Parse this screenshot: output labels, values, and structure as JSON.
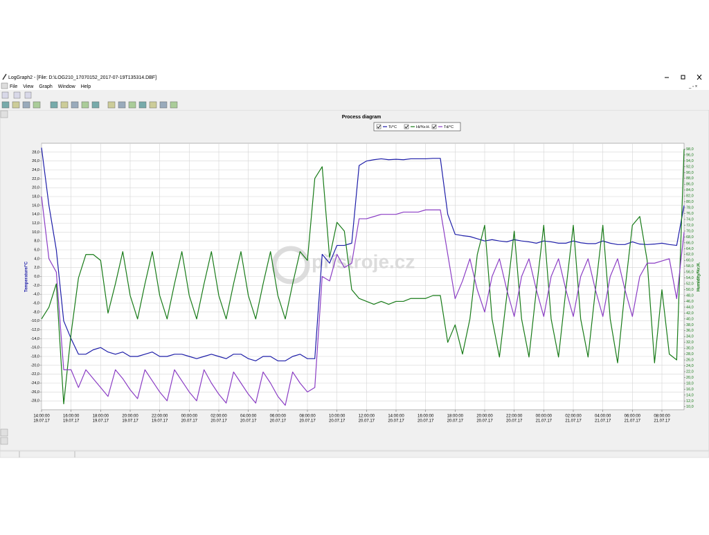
{
  "window": {
    "title": "LogGraph2 - [File: D:\\LOG210_17070152_2017-07-19T135314.DBF]",
    "menu": [
      "File",
      "View",
      "Graph",
      "Window",
      "Help"
    ],
    "watermark": "přístroje.cz"
  },
  "chart_data": {
    "type": "line",
    "title": "Process diagram",
    "y_label": "Temperature/°C",
    "y2_label": "Humidity/%r.H.",
    "grid": true,
    "x": [
      0,
      0.5,
      1,
      1.5,
      2,
      2.5,
      3,
      3.5,
      4,
      4.5,
      5,
      5.5,
      6,
      6.5,
      7,
      7.5,
      8,
      8.5,
      9,
      9.5,
      10,
      10.5,
      11,
      11.5,
      12,
      12.5,
      13,
      13.5,
      14,
      14.5,
      15,
      15.5,
      16,
      16.5,
      17,
      17.5,
      18,
      18.5,
      19,
      19.5,
      20,
      20.5,
      21,
      21.5,
      22,
      22.5,
      23,
      23.5,
      24,
      24.5,
      25,
      25.5,
      26,
      26.5,
      27,
      27.5,
      28,
      28.5,
      29,
      29.5,
      30,
      30.5,
      31,
      31.5,
      32,
      32.5,
      33,
      33.5,
      34,
      34.5,
      35,
      35.5,
      36,
      36.5,
      37,
      37.5,
      38,
      38.5,
      39,
      39.5,
      40,
      40.5,
      41,
      41.5,
      42,
      42.5,
      43,
      43.5
    ],
    "xlim": [
      0,
      43.5
    ],
    "xticks": [
      {
        "value": 0,
        "label": "14:00:00"
      },
      {
        "value": 2,
        "label": "16:00:00"
      },
      {
        "value": 4,
        "label": "18:00:00"
      },
      {
        "value": 6,
        "label": "20:00:00"
      },
      {
        "value": 8,
        "label": "22:00:00"
      },
      {
        "value": 10,
        "label": "00:00:00"
      },
      {
        "value": 12,
        "label": "02:00:00"
      },
      {
        "value": 14,
        "label": "04:00:00"
      },
      {
        "value": 16,
        "label": "06:00:00"
      },
      {
        "value": 18,
        "label": "08:00:00"
      },
      {
        "value": 20,
        "label": "10:00:00"
      },
      {
        "value": 22,
        "label": "12:00:00"
      },
      {
        "value": 24,
        "label": "14:00:00"
      },
      {
        "value": 26,
        "label": "16:00:00"
      },
      {
        "value": 28,
        "label": "18:00:00"
      },
      {
        "value": 30,
        "label": "20:00:00"
      },
      {
        "value": 32,
        "label": "22:00:00"
      },
      {
        "value": 34,
        "label": "00:00:00"
      },
      {
        "value": 36,
        "label": "02:00:00"
      },
      {
        "value": 38,
        "label": "04:00:00"
      },
      {
        "value": 40,
        "label": "06:00:00"
      },
      {
        "value": 42,
        "label": "08:00:00"
      }
    ],
    "xtick_dates": [
      "19.07.17",
      "19.07.17",
      "19.07.17",
      "19.07.17",
      "19.07.17",
      "20.07.17",
      "20.07.17",
      "20.07.17",
      "20.07.17",
      "20.07.17",
      "20.07.17",
      "20.07.17",
      "20.07.17",
      "20.07.17",
      "20.07.17",
      "20.07.17",
      "20.07.17",
      "21.07.17",
      "21.07.17",
      "21.07.17",
      "21.07.17",
      "21.07.17"
    ],
    "ylim": [
      -30,
      30
    ],
    "yticks": [
      {
        "value": -28,
        "label": "-28,0"
      },
      {
        "value": -26,
        "label": "-26,0"
      },
      {
        "value": -24,
        "label": "-24,0"
      },
      {
        "value": -22,
        "label": "-22,0"
      },
      {
        "value": -20,
        "label": "-20,0"
      },
      {
        "value": -18,
        "label": "-18,0"
      },
      {
        "value": -16,
        "label": "-16,0"
      },
      {
        "value": -14,
        "label": "-14,0"
      },
      {
        "value": -12,
        "label": "-12,0"
      },
      {
        "value": -10,
        "label": "-10,0"
      },
      {
        "value": -8,
        "label": "-8,0"
      },
      {
        "value": -6,
        "label": "-6,0"
      },
      {
        "value": -4,
        "label": "-4,0"
      },
      {
        "value": -2,
        "label": "-2,0"
      },
      {
        "value": 0,
        "label": "0,0"
      },
      {
        "value": 2,
        "label": "2,0"
      },
      {
        "value": 4,
        "label": "4,0"
      },
      {
        "value": 6,
        "label": "6,0"
      },
      {
        "value": 8,
        "label": "8,0"
      },
      {
        "value": 10,
        "label": "10,0"
      },
      {
        "value": 12,
        "label": "12,0"
      },
      {
        "value": 14,
        "label": "14,0"
      },
      {
        "value": 16,
        "label": "16,0"
      },
      {
        "value": 18,
        "label": "18,0"
      },
      {
        "value": 20,
        "label": "20,0"
      },
      {
        "value": 22,
        "label": "22,0"
      },
      {
        "value": 24,
        "label": "24,0"
      },
      {
        "value": 26,
        "label": "26,0"
      },
      {
        "value": 28,
        "label": "28,0"
      }
    ],
    "y2lim": [
      9,
      100
    ],
    "y2ticks": [
      {
        "value": 10,
        "label": "10,0"
      },
      {
        "value": 12,
        "label": "12,0"
      },
      {
        "value": 14,
        "label": "14,0"
      },
      {
        "value": 16,
        "label": "16,0"
      },
      {
        "value": 18,
        "label": "18,0"
      },
      {
        "value": 20,
        "label": "20,0"
      },
      {
        "value": 22,
        "label": "22,0"
      },
      {
        "value": 24,
        "label": "24,0"
      },
      {
        "value": 26,
        "label": "26,0"
      },
      {
        "value": 28,
        "label": "28,0"
      },
      {
        "value": 30,
        "label": "30,0"
      },
      {
        "value": 32,
        "label": "32,0"
      },
      {
        "value": 34,
        "label": "34,0"
      },
      {
        "value": 36,
        "label": "36,0"
      },
      {
        "value": 38,
        "label": "38,0"
      },
      {
        "value": 40,
        "label": "40,0"
      },
      {
        "value": 42,
        "label": "42,0"
      },
      {
        "value": 44,
        "label": "44,0"
      },
      {
        "value": 46,
        "label": "46,0"
      },
      {
        "value": 48,
        "label": "48,0"
      },
      {
        "value": 50,
        "label": "50,0"
      },
      {
        "value": 52,
        "label": "52,0"
      },
      {
        "value": 54,
        "label": "54,0"
      },
      {
        "value": 56,
        "label": "56,0"
      },
      {
        "value": 58,
        "label": "58,0"
      },
      {
        "value": 60,
        "label": "60,0"
      },
      {
        "value": 62,
        "label": "62,0"
      },
      {
        "value": 64,
        "label": "64,0"
      },
      {
        "value": 66,
        "label": "66,0"
      },
      {
        "value": 68,
        "label": "68,0"
      },
      {
        "value": 70,
        "label": "70,0"
      },
      {
        "value": 72,
        "label": "72,0"
      },
      {
        "value": 74,
        "label": "74,0"
      },
      {
        "value": 76,
        "label": "76,0"
      },
      {
        "value": 78,
        "label": "78,0"
      },
      {
        "value": 80,
        "label": "80,0"
      },
      {
        "value": 82,
        "label": "82,0"
      },
      {
        "value": 84,
        "label": "84,0"
      },
      {
        "value": 86,
        "label": "86,0"
      },
      {
        "value": 88,
        "label": "88,0"
      },
      {
        "value": 90,
        "label": "90,0"
      },
      {
        "value": 92,
        "label": "92,0"
      },
      {
        "value": 94,
        "label": "94,0"
      },
      {
        "value": 96,
        "label": "96,0"
      },
      {
        "value": 98,
        "label": "98,0"
      }
    ],
    "series": [
      {
        "name": "Ti/°C",
        "color": "#1c1ca8",
        "values": [
          29,
          16,
          6,
          -10,
          -14,
          -17.5,
          -17.5,
          -16.5,
          -16,
          -17,
          -17.5,
          -17,
          -18,
          -18,
          -17.5,
          -17,
          -18,
          -18,
          -17.5,
          -17.5,
          -18,
          -18.5,
          -18,
          -17.5,
          -18,
          -18.5,
          -17.5,
          -17.5,
          -18.5,
          -19,
          -18,
          -18,
          -19,
          -19,
          -18,
          -17.5,
          -18.5,
          -18.5,
          5,
          3,
          7,
          7,
          7.5,
          25,
          26,
          26.3,
          26.5,
          26.3,
          26.4,
          26.3,
          26.5,
          26.5,
          26.5,
          26.6,
          26.6,
          14,
          9.5,
          9.2,
          9,
          8.5,
          8,
          8.3,
          8,
          7.8,
          8.3,
          8,
          7.8,
          7.5,
          8,
          7.8,
          7.5,
          7.5,
          8,
          7.6,
          7.4,
          7.4,
          8,
          7.5,
          7.2,
          7.2,
          7.8,
          7.3,
          7.2,
          7.3,
          7.5,
          7.2,
          7,
          16
        ]
      },
      {
        "name": "Hi/%r.H.",
        "color": "#167a16",
        "axis": "y2",
        "values": [
          40,
          44,
          52,
          11,
          35,
          54,
          62,
          62,
          60,
          42,
          52,
          63,
          48,
          40,
          52,
          63,
          48,
          40,
          52,
          63,
          48,
          40,
          52,
          63,
          48,
          40,
          52,
          63,
          48,
          40,
          52,
          63,
          48,
          40,
          52,
          63,
          60,
          88,
          92,
          61,
          73,
          70,
          50,
          47,
          46,
          45,
          46,
          45,
          46,
          46,
          47,
          47,
          47,
          48,
          48,
          32,
          38,
          28,
          40,
          62,
          72,
          40,
          27,
          48,
          70,
          40,
          27,
          50,
          72,
          40,
          27,
          50,
          72,
          40,
          27,
          50,
          72,
          40,
          25,
          50,
          72,
          75,
          60,
          25,
          50,
          28,
          26,
          98
        ]
      },
      {
        "name": "Td/°C",
        "color": "#8a3cc4",
        "values": [
          18,
          4,
          1,
          -21,
          -21,
          -25,
          -21,
          -23,
          -25,
          -27,
          -21,
          -23,
          -25.5,
          -27.5,
          -21,
          -23.5,
          -26,
          -28,
          -21,
          -23.5,
          -26,
          -28,
          -21,
          -24,
          -26.5,
          -28.5,
          -21.5,
          -24,
          -26.5,
          -28.5,
          -21.5,
          -24,
          -27,
          -29,
          -21.5,
          -24,
          -26,
          -25,
          0,
          -1,
          5,
          2,
          3,
          13,
          13,
          13.5,
          14,
          14,
          14,
          14.5,
          14.5,
          14.5,
          15,
          15,
          15,
          5,
          -5,
          -1,
          4,
          -3,
          -8,
          0,
          4,
          -3,
          -9,
          0,
          4,
          -3,
          -9,
          0,
          4,
          -3,
          -9,
          0,
          4,
          -3,
          -9,
          0,
          4,
          -3,
          -9,
          0,
          3,
          3,
          3.5,
          4,
          -5,
          10
        ]
      }
    ]
  }
}
